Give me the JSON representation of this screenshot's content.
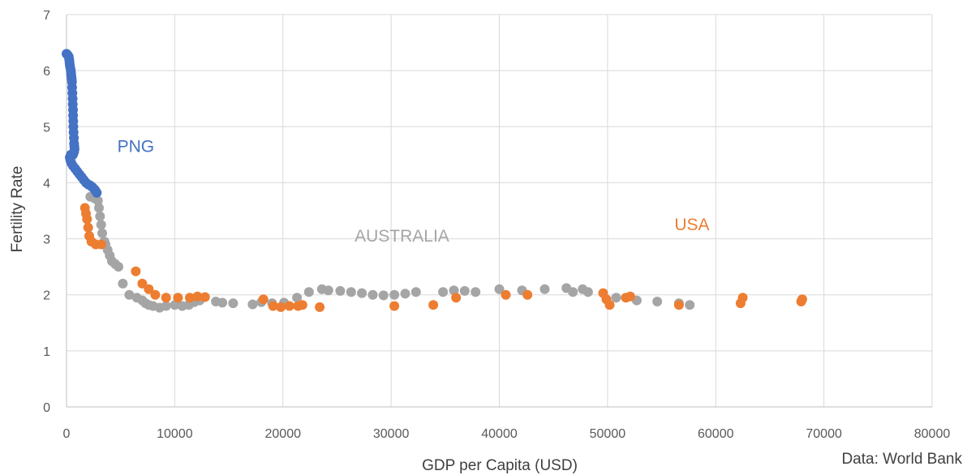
{
  "chart_data": {
    "type": "scatter",
    "title": "",
    "xlabel": "GDP per Capita (USD)",
    "ylabel": "Fertility Rate",
    "xlim": [
      0,
      80000
    ],
    "ylim": [
      0,
      7
    ],
    "x_ticks": [
      0,
      10000,
      20000,
      30000,
      40000,
      50000,
      60000,
      70000,
      80000
    ],
    "y_ticks": [
      0,
      1,
      2,
      3,
      4,
      5,
      6,
      7
    ],
    "grid": true,
    "legend": "none",
    "source_note": "Data: World Bank",
    "annotations": [
      {
        "text": "PNG",
        "series": "PNG",
        "x": 6400,
        "y": 4.55
      },
      {
        "text": "AUSTRALIA",
        "series": "AUSTRALIA",
        "x": 31000,
        "y": 2.95
      },
      {
        "text": "USA",
        "series": "USA",
        "x": 57800,
        "y": 3.15
      }
    ],
    "series": [
      {
        "name": "PNG",
        "color": "#4472c4",
        "points": [
          [
            0,
            6.3
          ],
          [
            100,
            6.28
          ],
          [
            200,
            6.25
          ],
          [
            250,
            6.2
          ],
          [
            280,
            6.15
          ],
          [
            300,
            6.1
          ],
          [
            350,
            6.05
          ],
          [
            400,
            6.0
          ],
          [
            420,
            5.95
          ],
          [
            450,
            5.9
          ],
          [
            480,
            5.85
          ],
          [
            500,
            5.8
          ],
          [
            520,
            5.7
          ],
          [
            540,
            5.6
          ],
          [
            560,
            5.5
          ],
          [
            580,
            5.4
          ],
          [
            600,
            5.3
          ],
          [
            610,
            5.2
          ],
          [
            620,
            5.1
          ],
          [
            630,
            5.0
          ],
          [
            650,
            4.9
          ],
          [
            680,
            4.8
          ],
          [
            700,
            4.7
          ],
          [
            720,
            4.65
          ],
          [
            740,
            4.6
          ],
          [
            700,
            4.55
          ],
          [
            600,
            4.5
          ],
          [
            400,
            4.5
          ],
          [
            300,
            4.45
          ],
          [
            350,
            4.4
          ],
          [
            450,
            4.35
          ],
          [
            600,
            4.3
          ],
          [
            800,
            4.25
          ],
          [
            1000,
            4.2
          ],
          [
            1200,
            4.15
          ],
          [
            1400,
            4.1
          ],
          [
            1600,
            4.05
          ],
          [
            1800,
            4.0
          ],
          [
            2000,
            3.97
          ],
          [
            2200,
            3.95
          ],
          [
            2400,
            3.92
          ],
          [
            2600,
            3.88
          ],
          [
            2700,
            3.85
          ],
          [
            2800,
            3.82
          ]
        ]
      },
      {
        "name": "AUSTRALIA",
        "color": "#a5a5a5",
        "points": [
          [
            2200,
            3.75
          ],
          [
            2600,
            3.72
          ],
          [
            2900,
            3.68
          ],
          [
            3000,
            3.55
          ],
          [
            3100,
            3.4
          ],
          [
            3200,
            3.25
          ],
          [
            3300,
            3.1
          ],
          [
            3500,
            2.95
          ],
          [
            3600,
            2.9
          ],
          [
            3800,
            2.8
          ],
          [
            4000,
            2.7
          ],
          [
            4200,
            2.6
          ],
          [
            4500,
            2.55
          ],
          [
            4800,
            2.5
          ],
          [
            5200,
            2.2
          ],
          [
            5800,
            2.0
          ],
          [
            6500,
            1.95
          ],
          [
            7000,
            1.9
          ],
          [
            7300,
            1.85
          ],
          [
            7600,
            1.82
          ],
          [
            8000,
            1.8
          ],
          [
            8600,
            1.77
          ],
          [
            9200,
            1.8
          ],
          [
            10000,
            1.82
          ],
          [
            10700,
            1.8
          ],
          [
            11300,
            1.82
          ],
          [
            11800,
            1.87
          ],
          [
            12300,
            1.9
          ],
          [
            13800,
            1.88
          ],
          [
            14400,
            1.86
          ],
          [
            15400,
            1.85
          ],
          [
            17200,
            1.83
          ],
          [
            18000,
            1.87
          ],
          [
            19000,
            1.85
          ],
          [
            20100,
            1.86
          ],
          [
            21300,
            1.95
          ],
          [
            22400,
            2.05
          ],
          [
            23600,
            2.1
          ],
          [
            24200,
            2.08
          ],
          [
            25300,
            2.07
          ],
          [
            26300,
            2.05
          ],
          [
            27300,
            2.03
          ],
          [
            28300,
            2.0
          ],
          [
            29300,
            1.99
          ],
          [
            30300,
            2.0
          ],
          [
            31300,
            2.02
          ],
          [
            32300,
            2.05
          ],
          [
            34800,
            2.05
          ],
          [
            35800,
            2.08
          ],
          [
            36800,
            2.07
          ],
          [
            37800,
            2.05
          ],
          [
            40000,
            2.1
          ],
          [
            42100,
            2.08
          ],
          [
            44200,
            2.1
          ],
          [
            46200,
            2.12
          ],
          [
            46800,
            2.05
          ],
          [
            47700,
            2.1
          ],
          [
            48200,
            2.05
          ],
          [
            50800,
            1.95
          ],
          [
            52700,
            1.9
          ],
          [
            54600,
            1.88
          ],
          [
            56600,
            1.85
          ],
          [
            57600,
            1.82
          ]
        ]
      },
      {
        "name": "USA",
        "color": "#ed7d31",
        "points": [
          [
            1700,
            3.55
          ],
          [
            1800,
            3.45
          ],
          [
            1900,
            3.35
          ],
          [
            2000,
            3.2
          ],
          [
            2100,
            3.05
          ],
          [
            2300,
            2.95
          ],
          [
            2700,
            2.9
          ],
          [
            3200,
            2.9
          ],
          [
            6400,
            2.42
          ],
          [
            7000,
            2.2
          ],
          [
            7600,
            2.1
          ],
          [
            8200,
            2.0
          ],
          [
            9200,
            1.95
          ],
          [
            10300,
            1.95
          ],
          [
            11400,
            1.95
          ],
          [
            12100,
            1.97
          ],
          [
            12800,
            1.96
          ],
          [
            18200,
            1.92
          ],
          [
            19100,
            1.8
          ],
          [
            19800,
            1.78
          ],
          [
            20600,
            1.8
          ],
          [
            21400,
            1.8
          ],
          [
            21800,
            1.82
          ],
          [
            23400,
            1.78
          ],
          [
            30300,
            1.8
          ],
          [
            33900,
            1.82
          ],
          [
            36000,
            1.95
          ],
          [
            40600,
            2.0
          ],
          [
            42600,
            2.0
          ],
          [
            49600,
            2.03
          ],
          [
            49900,
            1.92
          ],
          [
            50200,
            1.82
          ],
          [
            51700,
            1.95
          ],
          [
            52100,
            1.97
          ],
          [
            56600,
            1.82
          ],
          [
            62300,
            1.85
          ],
          [
            62500,
            1.95
          ],
          [
            67900,
            1.88
          ],
          [
            68000,
            1.92
          ]
        ]
      }
    ]
  }
}
